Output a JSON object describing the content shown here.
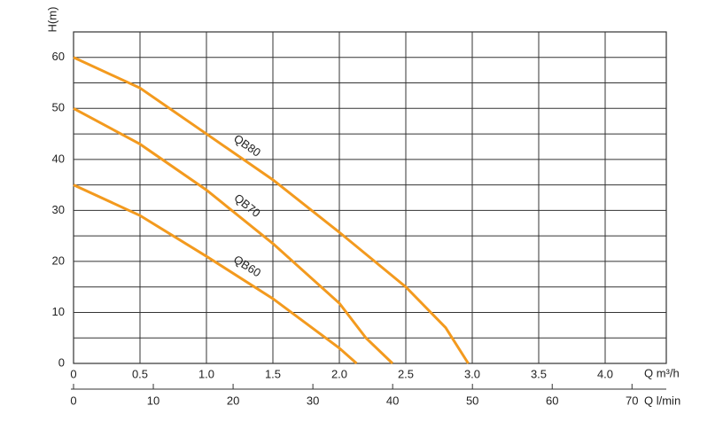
{
  "chart_data": {
    "type": "line",
    "y_label": "H(m)",
    "x_label": "Q m³/h",
    "x2_label": "Q l/min",
    "xlim": [
      0,
      4.46
    ],
    "ylim": [
      0,
      65
    ],
    "x2lim": [
      0,
      74.3
    ],
    "xticks": [
      0,
      0.5,
      {
        "value": 1,
        "label": "1.0"
      },
      1.5,
      {
        "value": 2,
        "label": "2.0"
      },
      2.5,
      {
        "value": 3,
        "label": "3.0"
      },
      3.5,
      {
        "value": 4,
        "label": "4.0"
      }
    ],
    "yticks": [
      0,
      10,
      20,
      30,
      40,
      50,
      60
    ],
    "ygrid": [
      5,
      10,
      15,
      20,
      25,
      30,
      35,
      40,
      45,
      50,
      55,
      60,
      65
    ],
    "x2ticks": [
      0,
      10,
      20,
      30,
      40,
      50,
      60,
      70
    ],
    "grid": true,
    "series": [
      {
        "name": "QB80",
        "color": "#f39a1e",
        "x": [
          0,
          0.5,
          1.0,
          1.5,
          2.0,
          2.5,
          2.8,
          2.97
        ],
        "values": [
          60,
          54,
          45,
          36,
          25.7,
          15,
          7,
          0
        ]
      },
      {
        "name": "QB70",
        "color": "#f39a1e",
        "x": [
          0,
          0.5,
          1.0,
          1.5,
          2.0,
          2.2,
          2.4
        ],
        "values": [
          50,
          43,
          34,
          23.5,
          11.8,
          5,
          0
        ]
      },
      {
        "name": "QB60",
        "color": "#f39a1e",
        "x": [
          0,
          0.5,
          1.0,
          1.5,
          2.0,
          2.13
        ],
        "values": [
          35,
          29,
          21,
          12.7,
          3,
          0
        ]
      }
    ]
  }
}
